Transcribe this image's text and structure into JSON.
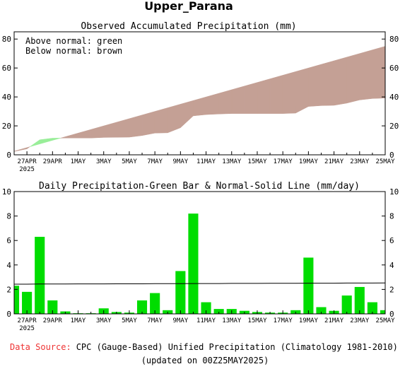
{
  "title": "Upper_Parana",
  "footer": {
    "source_label": "Data Source:",
    "source_text": "CPC (Gauge-Based) Unified Precipitation (Climatology 1981-2010)",
    "updated": "(updated on 00Z25MAY2025)"
  },
  "colors": {
    "above": "#99ee99",
    "below": "#c4a095",
    "bar": "#00dd00",
    "source_label": "#ee3333"
  },
  "chart_data": [
    {
      "type": "area",
      "title": "Observed Accumulated Precipitation (mm)",
      "legend": [
        "Above normal: green",
        "Below normal: brown"
      ],
      "legend_position": "top-left",
      "x": [
        "26APR",
        "27APR",
        "28APR",
        "29APR",
        "30APR",
        "1MAY",
        "2MAY",
        "3MAY",
        "4MAY",
        "5MAY",
        "6MAY",
        "7MAY",
        "8MAY",
        "9MAY",
        "10MAY",
        "11MAY",
        "12MAY",
        "13MAY",
        "14MAY",
        "15MAY",
        "16MAY",
        "17MAY",
        "18MAY",
        "19MAY",
        "20MAY",
        "21MAY",
        "22MAY",
        "23MAY",
        "24MAY",
        "25MAY"
      ],
      "xticks": [
        "27APR",
        "29APR",
        "1MAY",
        "3MAY",
        "5MAY",
        "7MAY",
        "9MAY",
        "11MAY",
        "13MAY",
        "15MAY",
        "17MAY",
        "19MAY",
        "21MAY",
        "23MAY",
        "25MAY"
      ],
      "xtick_sublabel": {
        "27APR": "2025"
      },
      "ylim": [
        0,
        85
      ],
      "yticks": [
        0,
        20,
        40,
        60,
        80
      ],
      "series": [
        {
          "role": "observed",
          "values": [
            2.3,
            4.1,
            10.4,
            11.5,
            11.6,
            11.6,
            11.6,
            12.0,
            12.1,
            12.2,
            13.3,
            15.0,
            15.2,
            18.7,
            26.9,
            27.8,
            28.2,
            28.5,
            28.5,
            28.5,
            28.5,
            28.5,
            28.8,
            33.4,
            34.0,
            34.2,
            35.7,
            37.9,
            38.9,
            39.2
          ]
        },
        {
          "role": "normal",
          "values": [
            2.5,
            5.0,
            7.5,
            10.0,
            12.5,
            15.0,
            17.5,
            20.0,
            22.5,
            25.0,
            27.5,
            30.0,
            32.5,
            35.0,
            37.5,
            40.0,
            42.5,
            45.0,
            47.5,
            50.0,
            52.5,
            55.0,
            57.5,
            60.0,
            62.5,
            65.0,
            67.5,
            70.0,
            72.5,
            75.0
          ]
        }
      ]
    },
    {
      "type": "bar",
      "title": "Daily Precipitation-Green Bar & Normal-Solid Line (mm/day)",
      "x": [
        "26APR",
        "27APR",
        "28APR",
        "29APR",
        "30APR",
        "1MAY",
        "2MAY",
        "3MAY",
        "4MAY",
        "5MAY",
        "6MAY",
        "7MAY",
        "8MAY",
        "9MAY",
        "10MAY",
        "11MAY",
        "12MAY",
        "13MAY",
        "14MAY",
        "15MAY",
        "16MAY",
        "17MAY",
        "18MAY",
        "19MAY",
        "20MAY",
        "21MAY",
        "22MAY",
        "23MAY",
        "24MAY",
        "25MAY"
      ],
      "xticks": [
        "27APR",
        "29APR",
        "1MAY",
        "3MAY",
        "5MAY",
        "7MAY",
        "9MAY",
        "11MAY",
        "13MAY",
        "15MAY",
        "17MAY",
        "19MAY",
        "21MAY",
        "23MAY",
        "25MAY"
      ],
      "xtick_sublabel": {
        "27APR": "2025"
      },
      "ylim": [
        0,
        10
      ],
      "yticks": [
        0,
        2,
        4,
        6,
        8,
        10
      ],
      "values": [
        2.3,
        1.8,
        6.3,
        1.1,
        0.2,
        0.05,
        0.05,
        0.45,
        0.15,
        0.1,
        1.1,
        1.7,
        0.3,
        3.5,
        8.2,
        0.95,
        0.4,
        0.4,
        0.25,
        0.15,
        0.1,
        0.1,
        0.3,
        4.6,
        0.55,
        0.25,
        1.5,
        2.2,
        0.95,
        0.3
      ],
      "normal": [
        2.43,
        2.43,
        2.44,
        2.44,
        2.44,
        2.45,
        2.45,
        2.45,
        2.46,
        2.46,
        2.46,
        2.47,
        2.47,
        2.47,
        2.48,
        2.48,
        2.48,
        2.49,
        2.49,
        2.49,
        2.5,
        2.5,
        2.5,
        2.51,
        2.51,
        2.51,
        2.52,
        2.52,
        2.52,
        2.53
      ]
    }
  ]
}
